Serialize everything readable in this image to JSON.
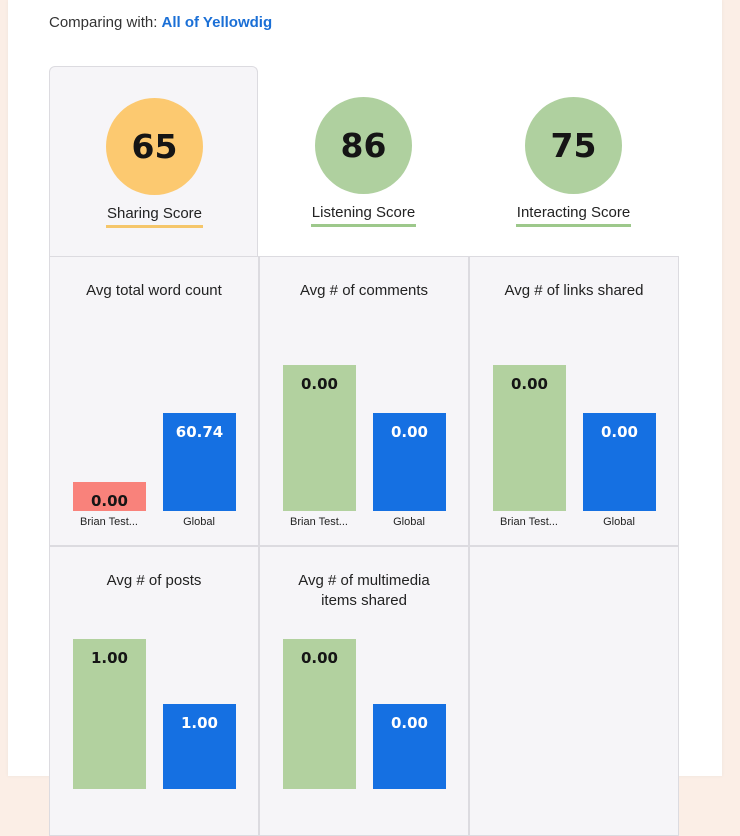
{
  "comparing": {
    "prefix": "Comparing with: ",
    "target": "All of Yellowdig"
  },
  "scores": [
    {
      "value": "65",
      "label": "Sharing Score",
      "color": "#fcc970",
      "underline": "#f5c66a"
    },
    {
      "value": "86",
      "label": "Listening Score",
      "color": "#afd09f",
      "underline": "#9dc88b"
    },
    {
      "value": "75",
      "label": "Interacting Score",
      "color": "#afd09f",
      "underline": "#9dc88b"
    }
  ],
  "colors": {
    "user_low": "#f9827b",
    "user_green": "#b2d19f",
    "global": "#1570e2"
  },
  "metrics": [
    {
      "title": "Avg total word count",
      "user_label": "Brian Test...",
      "global_label": "Global",
      "user_value": "0.00",
      "global_value": "60.74"
    },
    {
      "title": "Avg # of comments",
      "user_label": "Brian Test...",
      "global_label": "Global",
      "user_value": "0.00",
      "global_value": "0.00"
    },
    {
      "title": "Avg # of links shared",
      "user_label": "Brian Test...",
      "global_label": "Global",
      "user_value": "0.00",
      "global_value": "0.00"
    },
    {
      "title": "Avg # of posts",
      "user_label": "",
      "global_label": "",
      "user_value": "1.00",
      "global_value": "1.00"
    },
    {
      "title": "Avg # of multimedia items shared",
      "user_label": "",
      "global_label": "",
      "user_value": "0.00",
      "global_value": "0.00"
    }
  ]
}
